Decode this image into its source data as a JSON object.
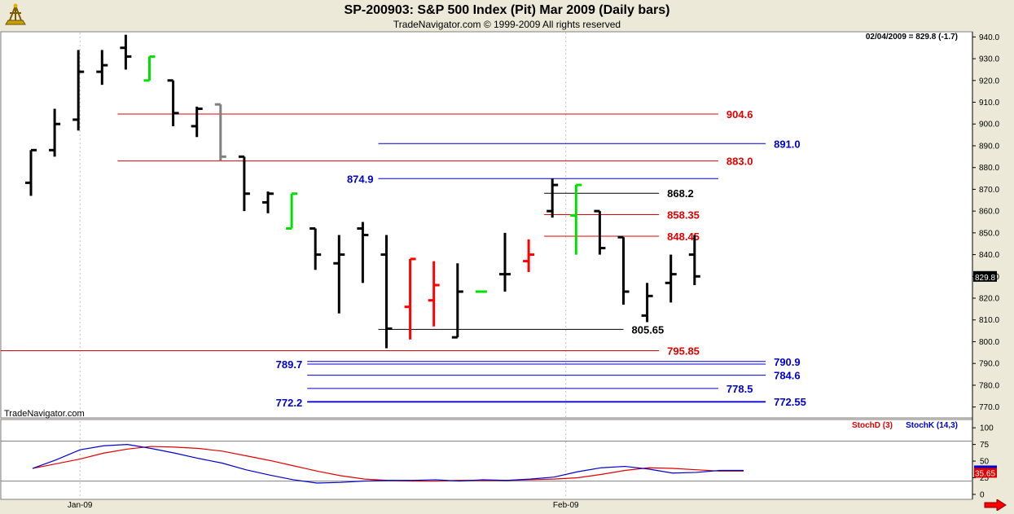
{
  "header": {
    "title": "SP-200903:  S&P 500 Index (Pit) Mar 2009  (Daily bars)",
    "copyright": "TradeNavigator.com © 1999-2009 All rights reserved"
  },
  "readout": "02/04/2009 = 829.8 (-1.7)",
  "watermark": "TradeNavigator.com",
  "colors": {
    "up": "#00e000",
    "down": "#ff0000",
    "bar": "#000000",
    "neutral": "#808080",
    "blue": "#0000cc",
    "red": "#e00000",
    "bg": "#ffffff",
    "frame": "#ece9d8"
  },
  "icons": {
    "logo": "sextant-logo-icon",
    "scroll": "red-right-arrow-icon"
  },
  "chart_data": [
    {
      "type": "ohlc",
      "ylim": [
        765,
        942
      ],
      "yticks": [
        770,
        780,
        790,
        800,
        810,
        820,
        830,
        840,
        850,
        860,
        870,
        880,
        890,
        900,
        910,
        920,
        930,
        940
      ],
      "ytick_labels": [
        "770.0",
        "780.0",
        "790.0",
        "800.0",
        "810.0",
        "820.0",
        "830.0",
        "840.0",
        "850.0",
        "860.0",
        "870.0",
        "880.0",
        "890.0",
        "900.0",
        "910.0",
        "920.0",
        "930.0",
        "940.0"
      ],
      "xlabels": [
        {
          "label": "Jan-09",
          "i": 2
        },
        {
          "label": "Feb-09",
          "i": 22.5
        }
      ],
      "last_price": "829.8",
      "bars": [
        {
          "o": 873,
          "h": 888,
          "l": 867,
          "c": 888,
          "col": "bar"
        },
        {
          "o": 888,
          "h": 907,
          "l": 885,
          "c": 900,
          "col": "bar"
        },
        {
          "o": 902,
          "h": 934,
          "l": 897,
          "c": 924,
          "col": "bar"
        },
        {
          "o": 924,
          "h": 934,
          "l": 918,
          "c": 927,
          "col": "bar"
        },
        {
          "o": 935,
          "h": 941,
          "l": 925,
          "c": 931,
          "col": "bar"
        },
        {
          "o": 920,
          "h": 931,
          "l": 920,
          "c": 931,
          "col": "up"
        },
        {
          "o": 920,
          "h": 920,
          "l": 899,
          "c": 905,
          "col": "bar"
        },
        {
          "o": 899,
          "h": 908,
          "l": 894,
          "c": 907,
          "col": "bar"
        },
        {
          "o": 909,
          "h": 909,
          "l": 883,
          "c": 885,
          "col": "neutral"
        },
        {
          "o": 885,
          "h": 885,
          "l": 860,
          "c": 868,
          "col": "bar"
        },
        {
          "o": 864,
          "h": 869,
          "l": 859,
          "c": 868,
          "col": "bar"
        },
        {
          "o": 852,
          "h": 868,
          "l": 852,
          "c": 868,
          "col": "up"
        },
        {
          "o": 852,
          "h": 852,
          "l": 833,
          "c": 840,
          "col": "bar"
        },
        {
          "o": 836,
          "h": 849,
          "l": 813,
          "c": 840,
          "col": "bar"
        },
        {
          "o": 852,
          "h": 855,
          "l": 827,
          "c": 849,
          "col": "bar"
        },
        {
          "o": 840,
          "h": 849,
          "l": 797,
          "c": 806,
          "col": "bar"
        },
        {
          "o": 816,
          "h": 838,
          "l": 801,
          "c": 838,
          "col": "down"
        },
        {
          "o": 819,
          "h": 837,
          "l": 807,
          "c": 826,
          "col": "down"
        },
        {
          "o": 802,
          "h": 836,
          "l": 802,
          "c": 823,
          "col": "bar"
        },
        {
          "o": 823,
          "h": 823,
          "l": 823,
          "c": 823,
          "col": "up"
        },
        {
          "o": 831,
          "h": 850,
          "l": 823,
          "c": 831,
          "col": "bar"
        },
        {
          "o": 837,
          "h": 847,
          "l": 832,
          "c": 840,
          "col": "down"
        },
        {
          "o": 860,
          "h": 875,
          "l": 857,
          "c": 872,
          "col": "bar"
        },
        {
          "o": 858,
          "h": 872,
          "l": 840,
          "c": 872,
          "col": "up"
        },
        {
          "o": 860,
          "h": 860,
          "l": 840,
          "c": 843,
          "col": "bar"
        },
        {
          "o": 848,
          "h": 848,
          "l": 817,
          "c": 823,
          "col": "bar"
        },
        {
          "o": 812,
          "h": 827,
          "l": 809,
          "c": 821,
          "col": "bar"
        },
        {
          "o": 827,
          "h": 840,
          "l": 818,
          "c": 831,
          "col": "bar"
        },
        {
          "o": 840,
          "h": 849,
          "l": 826,
          "c": 830,
          "col": "bar"
        }
      ],
      "levels": [
        {
          "value": 904.6,
          "label": "904.6",
          "color": "red",
          "from": 4,
          "to": 29
        },
        {
          "value": 891.0,
          "label": "891.0",
          "color": "blue",
          "from": 15,
          "to": 31
        },
        {
          "value": 883.0,
          "label": "883.0",
          "color": "red",
          "from": 4,
          "to": 29
        },
        {
          "value": 874.9,
          "label": "874.9",
          "color": "blue",
          "from": 15,
          "to": 29,
          "label_left": true
        },
        {
          "value": 868.2,
          "label": "868.2",
          "color": "bar",
          "from": 22,
          "to": 26.5
        },
        {
          "value": 858.35,
          "label": "858.35",
          "color": "red",
          "from": 22,
          "to": 26.5
        },
        {
          "value": 848.45,
          "label": "848.45",
          "color": "red",
          "from": 22,
          "to": 26.5
        },
        {
          "value": 805.65,
          "label": "805.65",
          "color": "bar",
          "from": 15,
          "to": 25
        },
        {
          "value": 795.85,
          "label": "795.85",
          "color": "red",
          "from": -2,
          "to": 26.5
        },
        {
          "value": 790.9,
          "label": "790.9",
          "color": "blue",
          "from": 12,
          "to": 31
        },
        {
          "value": 789.7,
          "label": "789.7",
          "color": "blue",
          "from": 12,
          "to": 31,
          "label_left": true
        },
        {
          "value": 784.6,
          "label": "784.6",
          "color": "blue",
          "from": 12,
          "to": 31
        },
        {
          "value": 778.5,
          "label": "778.5",
          "color": "blue",
          "from": 12,
          "to": 29
        },
        {
          "value": 772.55,
          "label": "772.55",
          "color": "blue",
          "from": 12,
          "to": 31
        },
        {
          "value": 772.2,
          "label": "772.2",
          "color": "blue",
          "from": 12,
          "to": 31,
          "label_left": true
        }
      ]
    },
    {
      "type": "line",
      "legend": [
        "StochD (3)",
        "StochK (14,3)"
      ],
      "ylim": [
        -5,
        110
      ],
      "yticks": [
        0,
        25,
        50,
        75,
        100
      ],
      "hlines": [
        20,
        80
      ],
      "readouts": [
        "35.65"
      ],
      "series": [
        {
          "name": "StochD (3)",
          "color": "red",
          "values": [
            39,
            46,
            53,
            62,
            68,
            72,
            71,
            69,
            65,
            58,
            51,
            43,
            35,
            28,
            23,
            21,
            20,
            20,
            21,
            21,
            21,
            22,
            23,
            25,
            30,
            36,
            40,
            39,
            37,
            35,
            35
          ]
        },
        {
          "name": "StochK (14,3)",
          "color": "blue",
          "values": [
            39,
            52,
            67,
            73,
            75,
            69,
            62,
            54,
            47,
            37,
            29,
            22,
            17,
            18,
            20,
            21,
            21,
            22,
            20,
            22,
            21,
            23,
            26,
            34,
            40,
            42,
            38,
            32,
            33,
            36,
            36
          ]
        }
      ]
    }
  ]
}
